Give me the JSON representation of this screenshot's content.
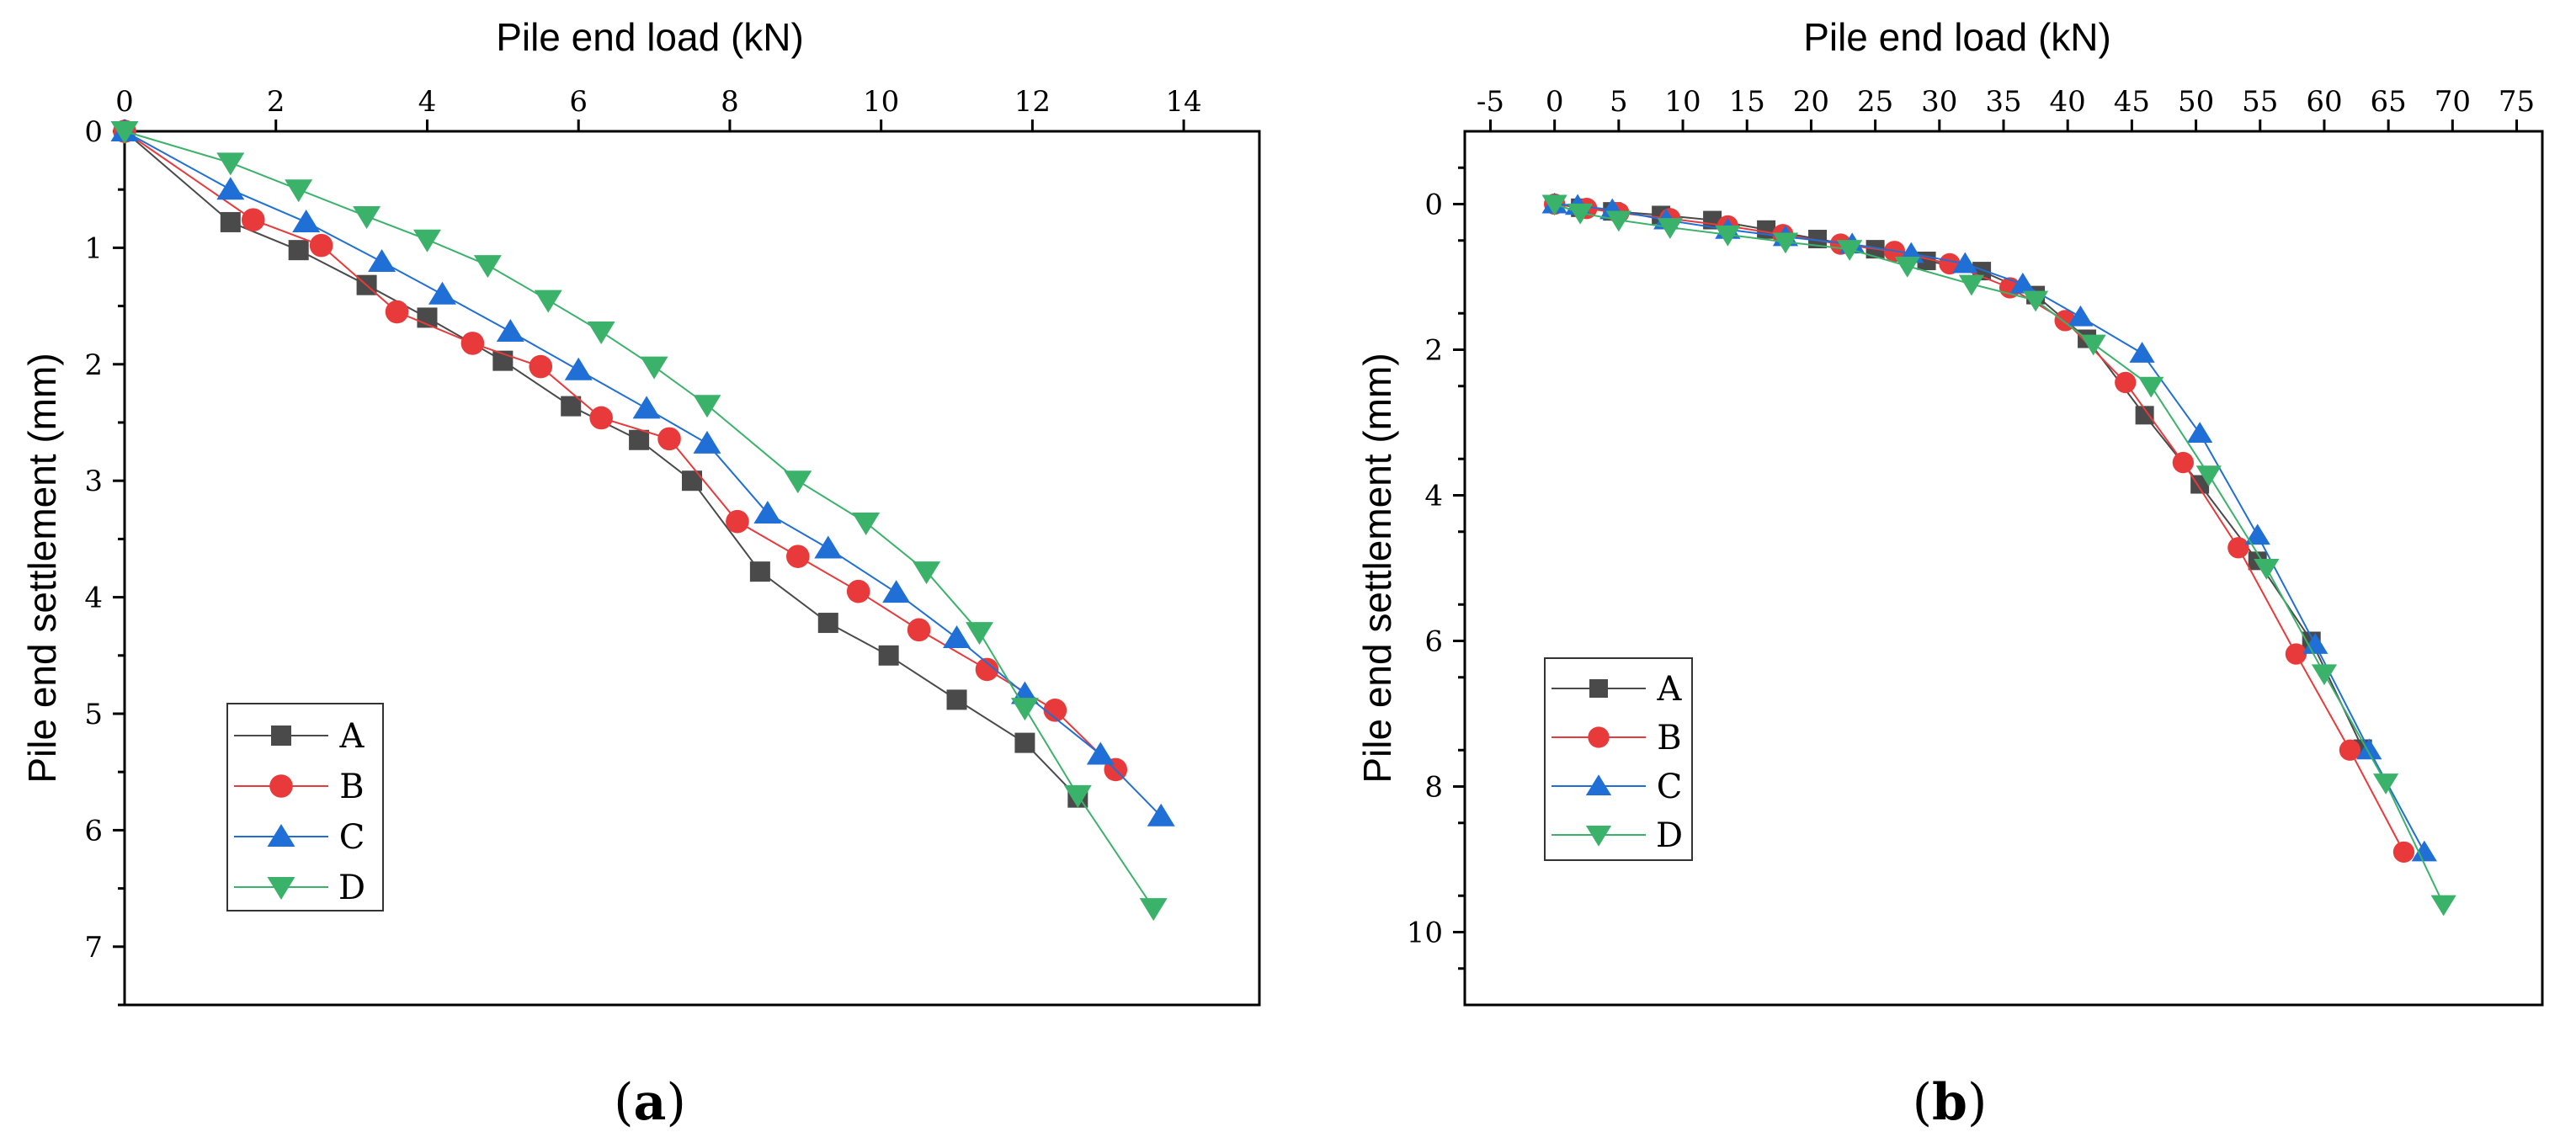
{
  "chart_data": [
    {
      "type": "line",
      "panel_label": "(a)",
      "panel_label_parts": {
        "open": "(",
        "letter": "a",
        "close": ")"
      },
      "xlabel": "Pile end load (kN)",
      "ylabel": "Pile end settlement (mm)",
      "x_axis_position": "top",
      "y_inverted": true,
      "xlim": [
        0,
        15
      ],
      "ylim": [
        0,
        7.5
      ],
      "xticks": [
        0,
        2,
        4,
        6,
        8,
        10,
        12,
        14
      ],
      "xtick_labels": [
        "0",
        "2",
        "4",
        "6",
        "8",
        "10",
        "12",
        "14"
      ],
      "yticks": [
        0,
        1,
        2,
        3,
        4,
        5,
        6,
        7
      ],
      "ytick_labels": [
        "0",
        "1",
        "2",
        "3",
        "4",
        "5",
        "6",
        "7"
      ],
      "legend_position": "lower-left",
      "series": [
        {
          "name": "A",
          "color": "#4a4a4a",
          "marker": "square",
          "x": [
            0,
            1.4,
            2.3,
            3.2,
            4.0,
            5.0,
            5.9,
            6.8,
            7.5,
            8.4,
            9.3,
            10.1,
            11.0,
            11.9,
            12.6
          ],
          "y": [
            0,
            0.78,
            1.02,
            1.32,
            1.6,
            1.97,
            2.36,
            2.65,
            3.0,
            3.78,
            4.22,
            4.5,
            4.88,
            5.25,
            5.72
          ]
        },
        {
          "name": "B",
          "color": "#e83a3a",
          "marker": "circle",
          "x": [
            0,
            1.7,
            2.6,
            3.6,
            4.6,
            5.5,
            6.3,
            7.2,
            8.1,
            8.9,
            9.7,
            10.5,
            11.4,
            12.3,
            13.1
          ],
          "y": [
            0,
            0.76,
            0.98,
            1.55,
            1.82,
            2.02,
            2.46,
            2.64,
            3.35,
            3.65,
            3.95,
            4.28,
            4.62,
            4.97,
            5.48
          ]
        },
        {
          "name": "C",
          "color": "#1f6fd6",
          "marker": "triangle-up",
          "x": [
            0,
            1.4,
            2.4,
            3.4,
            4.2,
            5.1,
            6.0,
            6.9,
            7.7,
            8.5,
            9.3,
            10.2,
            11.0,
            11.9,
            12.9,
            13.7
          ],
          "y": [
            0,
            0.5,
            0.78,
            1.12,
            1.4,
            1.72,
            2.05,
            2.38,
            2.68,
            3.28,
            3.58,
            3.96,
            4.35,
            4.83,
            5.35,
            5.88
          ]
        },
        {
          "name": "D",
          "color": "#3bb26a",
          "marker": "triangle-down",
          "x": [
            0,
            1.4,
            2.3,
            3.2,
            4.0,
            4.8,
            5.6,
            6.3,
            7.0,
            7.7,
            8.9,
            9.8,
            10.6,
            11.3,
            11.9,
            12.6,
            13.6
          ],
          "y": [
            0,
            0.27,
            0.5,
            0.73,
            0.93,
            1.15,
            1.45,
            1.72,
            2.02,
            2.35,
            3.0,
            3.36,
            3.78,
            4.3,
            4.95,
            5.7,
            6.67
          ]
        }
      ]
    },
    {
      "type": "line",
      "panel_label": "(b)",
      "panel_label_parts": {
        "open": "(",
        "letter": "b",
        "close": ")"
      },
      "xlabel": "Pile end load (kN)",
      "ylabel": "Pile end settlement (mm)",
      "x_axis_position": "top",
      "y_inverted": true,
      "xlim": [
        -7,
        77
      ],
      "ylim": [
        -1,
        11
      ],
      "xticks": [
        -5,
        0,
        5,
        10,
        15,
        20,
        25,
        30,
        35,
        40,
        45,
        50,
        55,
        60,
        65,
        70,
        75
      ],
      "xtick_labels": [
        "-5",
        "0",
        "5",
        "10",
        "15",
        "20",
        "25",
        "30",
        "35",
        "40",
        "45",
        "50",
        "55",
        "60",
        "65",
        "70",
        "75"
      ],
      "yticks": [
        0,
        2,
        4,
        6,
        8,
        10
      ],
      "ytick_labels": [
        "0",
        "2",
        "4",
        "6",
        "8",
        "10"
      ],
      "legend_position": "lower-left",
      "series": [
        {
          "name": "A",
          "color": "#4a4a4a",
          "marker": "square",
          "x": [
            0,
            2,
            4.5,
            8.3,
            12.3,
            16.5,
            20.5,
            25,
            29,
            33.3,
            37.5,
            41.5,
            46,
            50.3,
            54.8,
            59,
            63
          ],
          "y": [
            0,
            0.05,
            0.1,
            0.15,
            0.22,
            0.35,
            0.48,
            0.62,
            0.78,
            0.92,
            1.25,
            1.85,
            2.9,
            3.85,
            4.9,
            6.0,
            7.48
          ]
        },
        {
          "name": "B",
          "color": "#e83a3a",
          "marker": "circle",
          "x": [
            0,
            2.5,
            5,
            9,
            13.5,
            17.8,
            22.3,
            26.5,
            30.8,
            35.5,
            39.8,
            44.5,
            49,
            53.3,
            57.8,
            62,
            66.2
          ],
          "y": [
            0,
            0.06,
            0.12,
            0.2,
            0.3,
            0.42,
            0.55,
            0.65,
            0.82,
            1.15,
            1.6,
            2.45,
            3.55,
            4.72,
            6.18,
            7.5,
            8.9
          ]
        },
        {
          "name": "C",
          "color": "#1f6fd6",
          "marker": "triangle-up",
          "x": [
            0,
            1.8,
            4.5,
            8.7,
            13.5,
            18,
            23.2,
            27.8,
            32,
            36.5,
            41,
            45.8,
            50.3,
            54.8,
            59.3,
            63.5,
            67.8
          ],
          "y": [
            0,
            0.02,
            0.08,
            0.22,
            0.35,
            0.45,
            0.55,
            0.68,
            0.82,
            1.1,
            1.55,
            2.05,
            3.15,
            4.55,
            6.05,
            7.5,
            8.9
          ]
        },
        {
          "name": "D",
          "color": "#3bb26a",
          "marker": "triangle-down",
          "x": [
            0,
            2,
            5,
            9,
            13.5,
            18,
            23,
            27.5,
            32.5,
            37.5,
            42,
            46.5,
            51,
            55.5,
            60,
            64.8,
            69.3
          ],
          "y": [
            0,
            0.12,
            0.22,
            0.32,
            0.42,
            0.52,
            0.62,
            0.85,
            1.1,
            1.32,
            1.92,
            2.5,
            3.72,
            5.0,
            6.45,
            7.95,
            9.62
          ]
        }
      ]
    }
  ]
}
